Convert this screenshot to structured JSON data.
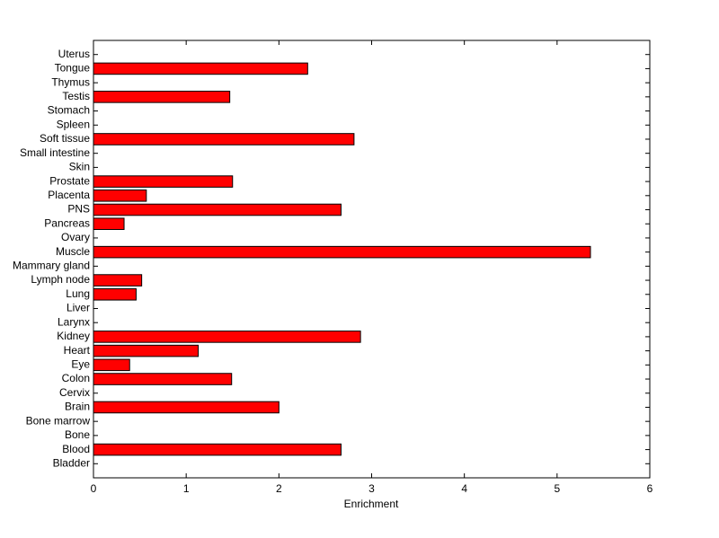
{
  "chart_data": {
    "type": "barh",
    "xlabel": "Enrichment",
    "categories": [
      "Bladder",
      "Blood",
      "Bone",
      "Bone marrow",
      "Brain",
      "Cervix",
      "Colon",
      "Eye",
      "Heart",
      "Kidney",
      "Larynx",
      "Liver",
      "Lung",
      "Lymph node",
      "Mammary gland",
      "Muscle",
      "Ovary",
      "Pancreas",
      "PNS",
      "Placenta",
      "Prostate",
      "Skin",
      "Small intestine",
      "Soft tissue",
      "Spleen",
      "Stomach",
      "Testis",
      "Thymus",
      "Tongue",
      "Uterus"
    ],
    "values": [
      0,
      2.67,
      0,
      0,
      2.0,
      0,
      1.49,
      0.39,
      1.13,
      2.88,
      0,
      0,
      0.46,
      0.52,
      0,
      5.36,
      0,
      0.33,
      2.67,
      0.57,
      1.5,
      0,
      0,
      2.81,
      0,
      0,
      1.47,
      0,
      2.31,
      0
    ],
    "color": "#ff0000",
    "xlim": [
      0,
      6
    ],
    "xticks": [
      0,
      1,
      2,
      3,
      4,
      5,
      6
    ],
    "grid": false
  }
}
